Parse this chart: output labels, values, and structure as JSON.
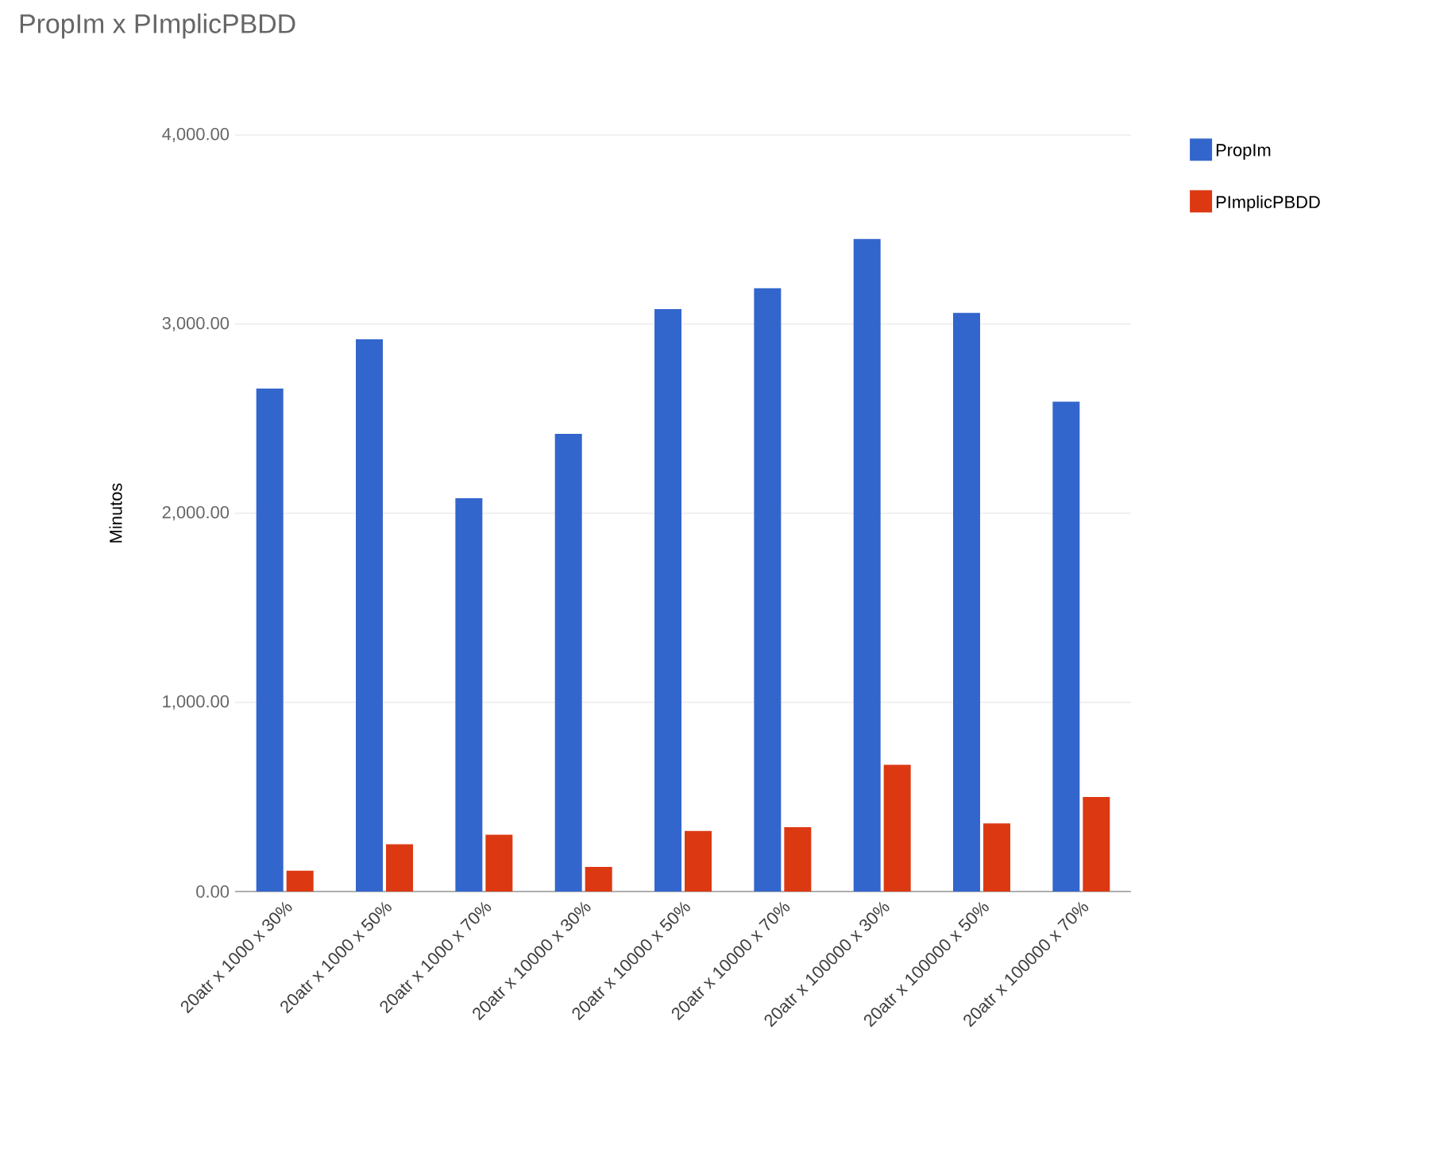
{
  "chart_data": {
    "type": "bar",
    "title": "PropIm x PImplicPBDD",
    "ylabel": "Minutos",
    "categories": [
      "20atr x 1000 x 30%",
      "20atr x 1000 x 50%",
      "20atr x 1000 x 70%",
      "20atr x 10000 x 30%",
      "20atr x 10000 x 50%",
      "20atr x 10000 x 70%",
      "20atr x 100000 x 30%",
      "20atr x 100000 x 50%",
      "20atr x 100000 x 70%"
    ],
    "series": [
      {
        "name": "PropIm",
        "color": "#3366cc",
        "values": [
          2660,
          2920,
          2080,
          2420,
          3080,
          3190,
          3450,
          3060,
          2590
        ]
      },
      {
        "name": "PImplicPBDD",
        "color": "#dc3912",
        "values": [
          110,
          250,
          300,
          130,
          320,
          340,
          670,
          360,
          500
        ]
      }
    ],
    "ylim": [
      0,
      4000
    ],
    "yticks": [
      {
        "value": 0,
        "label": "0.00"
      },
      {
        "value": 1000,
        "label": "1,000.00"
      },
      {
        "value": 2000,
        "label": "2,000.00"
      },
      {
        "value": 3000,
        "label": "3,000.00"
      },
      {
        "value": 4000,
        "label": "4,000.00"
      }
    ],
    "grid": "y",
    "legend": "top right"
  }
}
